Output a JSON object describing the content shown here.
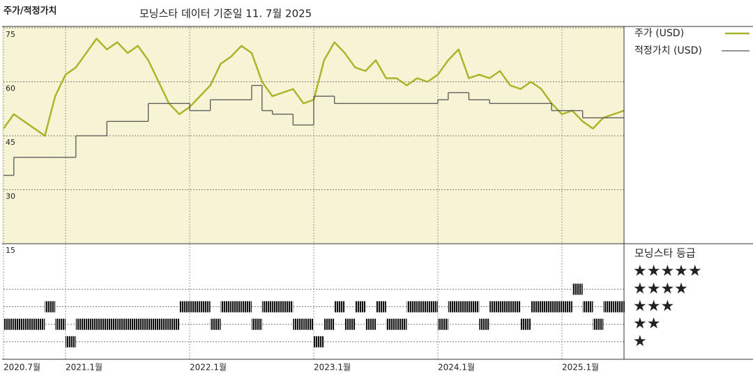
{
  "chart_data": [
    {
      "type": "line",
      "title": "주가/적정가치",
      "subtitle": "모닝스타 데이터 기준일 11. 7월 2025",
      "categories": [
        "2020.7월",
        null,
        null,
        null,
        null,
        null,
        "2021.1월",
        null,
        null,
        null,
        null,
        null,
        null,
        null,
        null,
        null,
        null,
        null,
        "2022.1월",
        null,
        null,
        null,
        null,
        null,
        null,
        null,
        null,
        null,
        null,
        null,
        "2023.1월",
        null,
        null,
        null,
        null,
        null,
        null,
        null,
        null,
        null,
        null,
        null,
        "2024.1월",
        null,
        null,
        null,
        null,
        null,
        null,
        null,
        null,
        null,
        null,
        null,
        "2025.1월",
        null,
        null,
        null,
        null,
        null,
        null
      ],
      "series": [
        {
          "name": "주가 (USD)",
          "color": "#a9b52a",
          "values": [
            47,
            51,
            49,
            47,
            45,
            56,
            62,
            64,
            68,
            72,
            69,
            71,
            68,
            70,
            66,
            60,
            54,
            51,
            53,
            56,
            59,
            65,
            67,
            70,
            68,
            60,
            56,
            57,
            58,
            54,
            55,
            66,
            71,
            68,
            64,
            63,
            66,
            61,
            61,
            59,
            61,
            60,
            62,
            66,
            69,
            61,
            62,
            61,
            63,
            59,
            58,
            60,
            58,
            54,
            51,
            52,
            49,
            47,
            50,
            51,
            52
          ]
        },
        {
          "name": "적정가치 (USD)",
          "color": "#555555",
          "step": true,
          "values": [
            34,
            39,
            39,
            39,
            39,
            39,
            39,
            45,
            45,
            45,
            49,
            49,
            49,
            49,
            54,
            54,
            54,
            54,
            52,
            52,
            55,
            55,
            55,
            55,
            59,
            52,
            51,
            51,
            48,
            48,
            56,
            56,
            54,
            54,
            54,
            54,
            54,
            54,
            54,
            54,
            54,
            54,
            55,
            57,
            57,
            55,
            55,
            54,
            54,
            54,
            54,
            54,
            54,
            52,
            52,
            52,
            50,
            50,
            50,
            50,
            50
          ]
        }
      ],
      "ylim": [
        15,
        75
      ],
      "yticks": [
        15,
        30,
        45,
        60,
        75
      ],
      "grid": true
    },
    {
      "type": "rating",
      "title": "모닝스타 등급",
      "values": [
        2,
        2,
        2,
        2,
        3,
        2,
        1,
        2,
        2,
        2,
        2,
        2,
        2,
        2,
        2,
        2,
        2,
        3,
        3,
        3,
        2,
        3,
        3,
        3,
        2,
        3,
        3,
        3,
        2,
        2,
        1,
        2,
        3,
        2,
        3,
        2,
        3,
        2,
        2,
        3,
        3,
        3,
        2,
        3,
        3,
        3,
        2,
        3,
        3,
        3,
        2,
        3,
        3,
        3,
        3,
        4,
        3,
        2,
        3,
        3,
        3
      ],
      "ylim": [
        0,
        6.6
      ],
      "yticks": [
        {
          "value": 5,
          "label": "★★★★★"
        },
        {
          "value": 4,
          "label": "★★★★"
        },
        {
          "value": 3,
          "label": "★★★"
        },
        {
          "value": 2,
          "label": "★★"
        },
        {
          "value": 1,
          "label": "★"
        }
      ]
    }
  ]
}
